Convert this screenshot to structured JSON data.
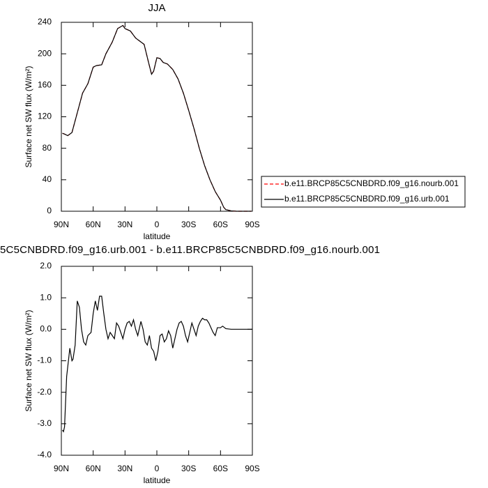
{
  "chart_data": [
    {
      "type": "line",
      "title": "JJA",
      "xlabel": "latitude",
      "ylabel": "Surface net SW flux (W/m²)",
      "x": [
        89,
        87,
        84,
        80,
        75,
        70,
        65,
        60,
        57,
        52,
        48,
        42,
        37,
        32,
        30,
        25,
        20,
        15,
        12,
        8,
        5,
        3,
        0,
        -3,
        -6,
        -10,
        -15,
        -20,
        -25,
        -30,
        -35,
        -40,
        -45,
        -50,
        -55,
        -60,
        -63,
        -65,
        -70,
        -75,
        -80,
        -85,
        -89
      ],
      "series": [
        {
          "name": "b.e11.BRCP85C5CNBDRD.f09_g16.nourb.001",
          "color": "#ff0000",
          "line_style": "dashed",
          "values": [
            99,
            98,
            96,
            100,
            125,
            150,
            162,
            183,
            185,
            186,
            200,
            215,
            232,
            236,
            232,
            229,
            220,
            215,
            212,
            190,
            174,
            178,
            195,
            194,
            189,
            187,
            180,
            168,
            150,
            128,
            105,
            80,
            58,
            40,
            25,
            14,
            5,
            2,
            0.5,
            0,
            0,
            0,
            0
          ]
        },
        {
          "name": "b.e11.BRCP85C5CNBDRD.f09_g16.urb.001",
          "color": "#000000",
          "line_style": "solid",
          "values": [
            99,
            98,
            96,
            100,
            125,
            150,
            162,
            183,
            185,
            186,
            200,
            215,
            232,
            236,
            232,
            229,
            220,
            215,
            212,
            190,
            174,
            178,
            195,
            194,
            189,
            187,
            180,
            168,
            150,
            128,
            105,
            80,
            58,
            40,
            25,
            14,
            5,
            2,
            0.5,
            0,
            0,
            0,
            0
          ]
        }
      ],
      "xlim": [
        90,
        -90
      ],
      "xticks": [
        {
          "value": 90,
          "label": "90N"
        },
        {
          "value": 60,
          "label": "60N"
        },
        {
          "value": 30,
          "label": "30N"
        },
        0,
        {
          "value": -30,
          "label": "30S"
        },
        {
          "value": -60,
          "label": "60S"
        },
        {
          "value": -90,
          "label": "90S"
        }
      ],
      "ylim": [
        0,
        240
      ],
      "yticks": [
        0,
        40,
        80,
        120,
        160,
        200,
        240
      ],
      "legend": "right"
    },
    {
      "type": "line",
      "title": "5C5CNBDRD.f09_g16.urb.001 - b.e11.BRCP85C5CNBDRD.f09_g16.nourb.001",
      "xlabel": "latitude",
      "ylabel": "Surface net SW flux (W/m²)",
      "x": [
        89,
        88,
        87,
        85,
        83,
        82,
        80,
        79,
        77,
        75,
        73,
        71,
        69,
        67,
        65,
        62,
        60,
        58,
        56,
        54,
        52,
        50,
        48,
        46,
        44,
        42,
        40,
        38,
        36,
        34,
        32,
        30,
        28,
        26,
        24,
        22,
        20,
        18,
        15,
        13,
        11,
        9,
        7,
        5,
        3,
        1,
        -1,
        -3,
        -5,
        -7,
        -9,
        -11,
        -13,
        -15,
        -17,
        -19,
        -21,
        -23,
        -25,
        -27,
        -29,
        -31,
        -33,
        -35,
        -37,
        -39,
        -41,
        -43,
        -45,
        -47,
        -49,
        -51,
        -53,
        -55,
        -57,
        -60,
        -62,
        -65,
        -70,
        -80,
        -90
      ],
      "series": [
        {
          "color": "#000000",
          "line_style": "solid",
          "values": [
            -3.2,
            -3.25,
            -3.1,
            -1.5,
            -0.9,
            -0.6,
            -1.0,
            -0.95,
            -0.5,
            0.9,
            0.7,
            0.0,
            -0.4,
            -0.5,
            -0.2,
            -0.1,
            0.5,
            0.9,
            0.6,
            1.05,
            1.05,
            0.5,
            0.0,
            -0.3,
            -0.1,
            -0.2,
            -0.3,
            0.2,
            0.1,
            -0.1,
            -0.3,
            0.0,
            0.2,
            0.25,
            0.1,
            0.3,
            0.0,
            -0.2,
            0.25,
            0.0,
            -0.4,
            -0.5,
            -0.2,
            -0.6,
            -0.7,
            -1.0,
            -0.7,
            -0.2,
            -0.15,
            -0.4,
            -0.3,
            -0.05,
            -0.2,
            -0.6,
            -0.3,
            0.0,
            0.2,
            0.25,
            0.1,
            -0.2,
            -0.4,
            -0.1,
            0.2,
            0.0,
            -0.2,
            0.1,
            0.25,
            0.35,
            0.3,
            0.3,
            0.2,
            0.05,
            -0.1,
            -0.2,
            0.05,
            0.05,
            0.1,
            0.02,
            0,
            0,
            0
          ]
        }
      ],
      "xlim": [
        90,
        -90
      ],
      "xticks": [
        {
          "value": 90,
          "label": "90N"
        },
        {
          "value": 60,
          "label": "60N"
        },
        {
          "value": 30,
          "label": "30N"
        },
        0,
        {
          "value": -30,
          "label": "30S"
        },
        {
          "value": -60,
          "label": "60S"
        },
        {
          "value": -90,
          "label": "90S"
        }
      ],
      "ylim": [
        -4,
        2
      ],
      "yticks": [
        {
          "value": -4,
          "label": "-4.0"
        },
        {
          "value": -3,
          "label": "-3.0"
        },
        {
          "value": -2,
          "label": "-2.0"
        },
        {
          "value": -1,
          "label": "-1.0"
        },
        {
          "value": 0,
          "label": "0.0"
        },
        {
          "value": 1,
          "label": "1.0"
        },
        {
          "value": 2,
          "label": "2.0"
        }
      ]
    }
  ]
}
